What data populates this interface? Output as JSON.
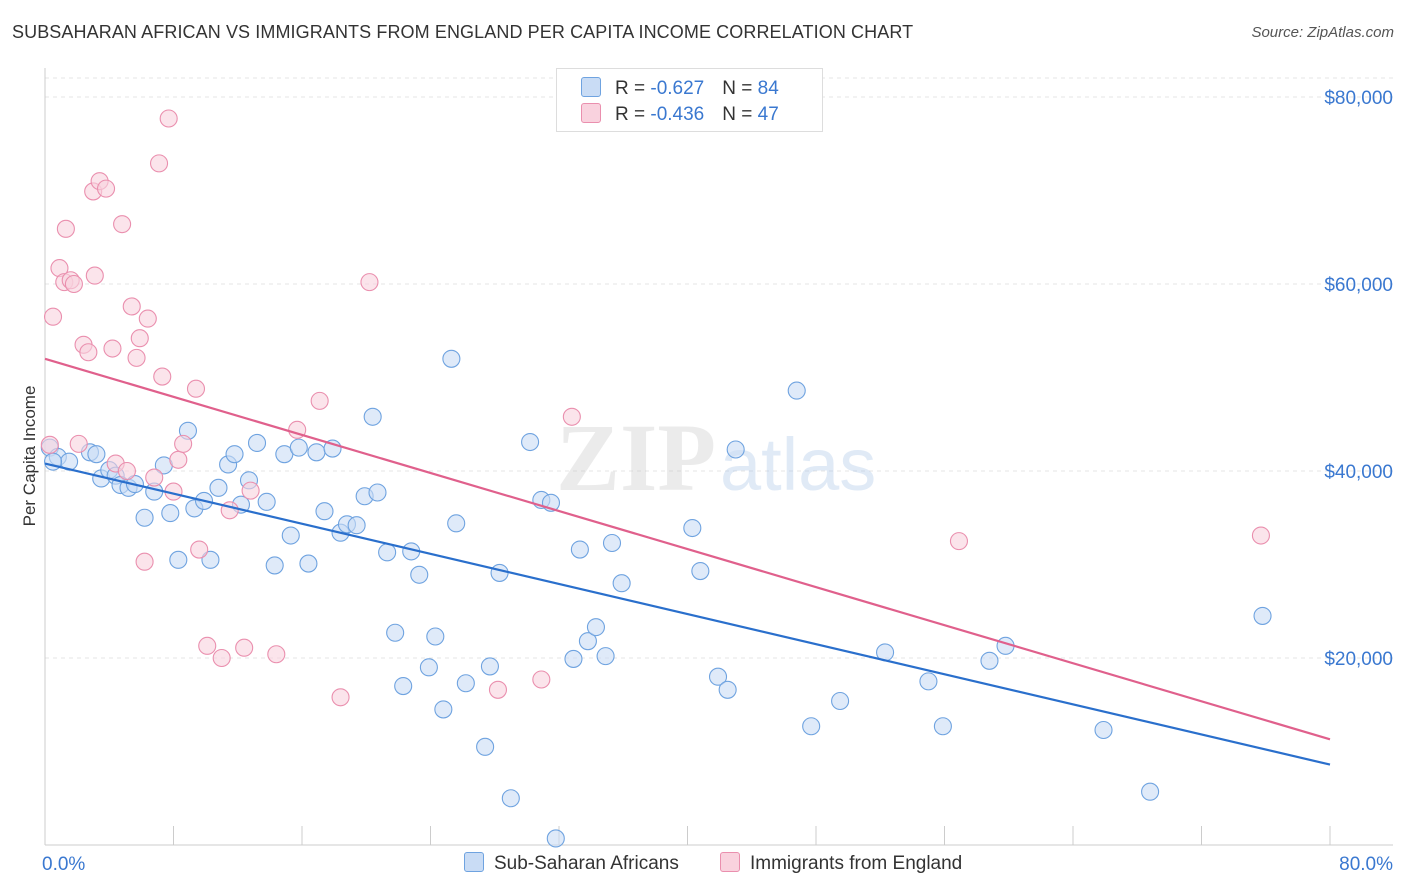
{
  "header": {
    "title": "SUBSAHARAN AFRICAN VS IMMIGRANTS FROM ENGLAND PER CAPITA INCOME CORRELATION CHART",
    "source": "Source: ZipAtlas.com"
  },
  "watermark": {
    "zip": "ZIP",
    "atlas": "atlas"
  },
  "legend": {
    "rows": [
      {
        "r_label": "R = ",
        "r_value": "-0.627",
        "n_label": "N = ",
        "n_value": "84",
        "color": "#a8c8f0"
      },
      {
        "r_label": "R = ",
        "r_value": "-0.436",
        "n_label": "N = ",
        "n_value": "47",
        "color": "#f8b8cc"
      }
    ]
  },
  "bottom_legend": [
    {
      "label": "Sub-Saharan Africans",
      "color": "#a8c8f0"
    },
    {
      "label": "Immigrants from England",
      "color": "#f8b8cc"
    }
  ],
  "chart_data": {
    "type": "scatter",
    "ylabel": "Per Capita Income",
    "xlim": [
      0,
      80
    ],
    "ylim": [
      0,
      80000
    ],
    "x_tick_labels": [
      {
        "value": 0,
        "label": "0.0%"
      },
      {
        "value": 80,
        "label": "80.0%"
      }
    ],
    "y_tick_labels": [
      {
        "value": 20000,
        "label": "$20,000"
      },
      {
        "value": 40000,
        "label": "$40,000"
      },
      {
        "value": 60000,
        "label": "$60,000"
      },
      {
        "value": 80000,
        "label": "$80,000"
      }
    ],
    "grid": true,
    "series": [
      {
        "name": "Sub-Saharan Africans",
        "color": "#6fa3e0",
        "fill": "#c9dcf5",
        "trend": {
          "x": [
            0,
            80
          ],
          "y": [
            40800,
            8600
          ],
          "color": "#2a6fcc"
        },
        "points": [
          [
            0.3,
            42500
          ],
          [
            0.8,
            41500
          ],
          [
            1.5,
            41000
          ],
          [
            2.8,
            42000
          ],
          [
            3.2,
            41800
          ],
          [
            3.5,
            39200
          ],
          [
            4.0,
            40100
          ],
          [
            4.4,
            39500
          ],
          [
            4.7,
            38500
          ],
          [
            5.2,
            38200
          ],
          [
            5.6,
            38600
          ],
          [
            6.2,
            35000
          ],
          [
            6.8,
            37800
          ],
          [
            7.4,
            40600
          ],
          [
            7.8,
            35500
          ],
          [
            8.3,
            30500
          ],
          [
            8.9,
            44300
          ],
          [
            9.3,
            36000
          ],
          [
            9.9,
            36800
          ],
          [
            10.3,
            30500
          ],
          [
            10.8,
            38200
          ],
          [
            11.4,
            40700
          ],
          [
            11.8,
            41800
          ],
          [
            12.2,
            36400
          ],
          [
            12.7,
            39000
          ],
          [
            13.2,
            43000
          ],
          [
            13.8,
            36700
          ],
          [
            14.3,
            29900
          ],
          [
            14.9,
            41800
          ],
          [
            15.3,
            33100
          ],
          [
            15.8,
            42500
          ],
          [
            16.4,
            30100
          ],
          [
            16.9,
            42000
          ],
          [
            17.4,
            35700
          ],
          [
            17.9,
            42400
          ],
          [
            18.4,
            33400
          ],
          [
            18.8,
            34300
          ],
          [
            19.4,
            34200
          ],
          [
            19.9,
            37300
          ],
          [
            20.4,
            45800
          ],
          [
            20.7,
            37700
          ],
          [
            21.3,
            31300
          ],
          [
            21.8,
            22700
          ],
          [
            22.3,
            17000
          ],
          [
            22.8,
            31400
          ],
          [
            23.3,
            28900
          ],
          [
            23.9,
            19000
          ],
          [
            24.3,
            22300
          ],
          [
            24.8,
            14500
          ],
          [
            25.3,
            52000
          ],
          [
            25.6,
            34400
          ],
          [
            26.2,
            17300
          ],
          [
            27.4,
            10500
          ],
          [
            27.7,
            19100
          ],
          [
            28.3,
            29100
          ],
          [
            29.0,
            5000
          ],
          [
            30.2,
            43100
          ],
          [
            30.9,
            36900
          ],
          [
            31.5,
            36600
          ],
          [
            31.8,
            700
          ],
          [
            32.9,
            19900
          ],
          [
            33.3,
            31600
          ],
          [
            33.8,
            21800
          ],
          [
            34.3,
            23300
          ],
          [
            34.9,
            20200
          ],
          [
            35.3,
            32300
          ],
          [
            35.9,
            28000
          ],
          [
            40.3,
            33900
          ],
          [
            40.8,
            29300
          ],
          [
            41.9,
            18000
          ],
          [
            42.5,
            16600
          ],
          [
            43.0,
            42300
          ],
          [
            46.8,
            48600
          ],
          [
            47.7,
            12700
          ],
          [
            49.5,
            15400
          ],
          [
            52.3,
            20600
          ],
          [
            55.0,
            17500
          ],
          [
            55.9,
            12700
          ],
          [
            58.8,
            19700
          ],
          [
            59.8,
            21300
          ],
          [
            65.9,
            12300
          ],
          [
            68.8,
            5700
          ],
          [
            75.8,
            24500
          ],
          [
            0.5,
            41000
          ]
        ]
      },
      {
        "name": "Immigrants from England",
        "color": "#ea8fae",
        "fill": "#f9d2de",
        "trend": {
          "x": [
            0,
            80
          ],
          "y": [
            52000,
            11300
          ],
          "color": "#e0608c"
        },
        "points": [
          [
            0.3,
            42800
          ],
          [
            0.5,
            56500
          ],
          [
            0.9,
            61700
          ],
          [
            1.2,
            60200
          ],
          [
            1.3,
            65900
          ],
          [
            1.6,
            60400
          ],
          [
            1.8,
            60000
          ],
          [
            2.1,
            42900
          ],
          [
            2.4,
            53500
          ],
          [
            2.7,
            52700
          ],
          [
            3.0,
            69900
          ],
          [
            3.1,
            60900
          ],
          [
            3.4,
            71000
          ],
          [
            3.8,
            70200
          ],
          [
            4.2,
            53100
          ],
          [
            4.4,
            40800
          ],
          [
            4.8,
            66400
          ],
          [
            5.1,
            40000
          ],
          [
            5.4,
            57600
          ],
          [
            5.7,
            52100
          ],
          [
            5.9,
            54200
          ],
          [
            6.2,
            30300
          ],
          [
            6.4,
            56300
          ],
          [
            6.8,
            39300
          ],
          [
            7.1,
            72900
          ],
          [
            7.3,
            50100
          ],
          [
            7.7,
            77700
          ],
          [
            8.0,
            37800
          ],
          [
            8.3,
            41200
          ],
          [
            8.6,
            42900
          ],
          [
            9.4,
            48800
          ],
          [
            9.6,
            31600
          ],
          [
            10.1,
            21300
          ],
          [
            11.0,
            20000
          ],
          [
            11.5,
            35800
          ],
          [
            12.4,
            21100
          ],
          [
            12.8,
            37900
          ],
          [
            14.4,
            20400
          ],
          [
            15.7,
            44400
          ],
          [
            17.1,
            47500
          ],
          [
            18.4,
            15800
          ],
          [
            20.2,
            60200
          ],
          [
            28.2,
            16600
          ],
          [
            30.9,
            17700
          ],
          [
            32.8,
            45800
          ],
          [
            56.9,
            32500
          ],
          [
            75.7,
            33100
          ]
        ]
      }
    ]
  }
}
